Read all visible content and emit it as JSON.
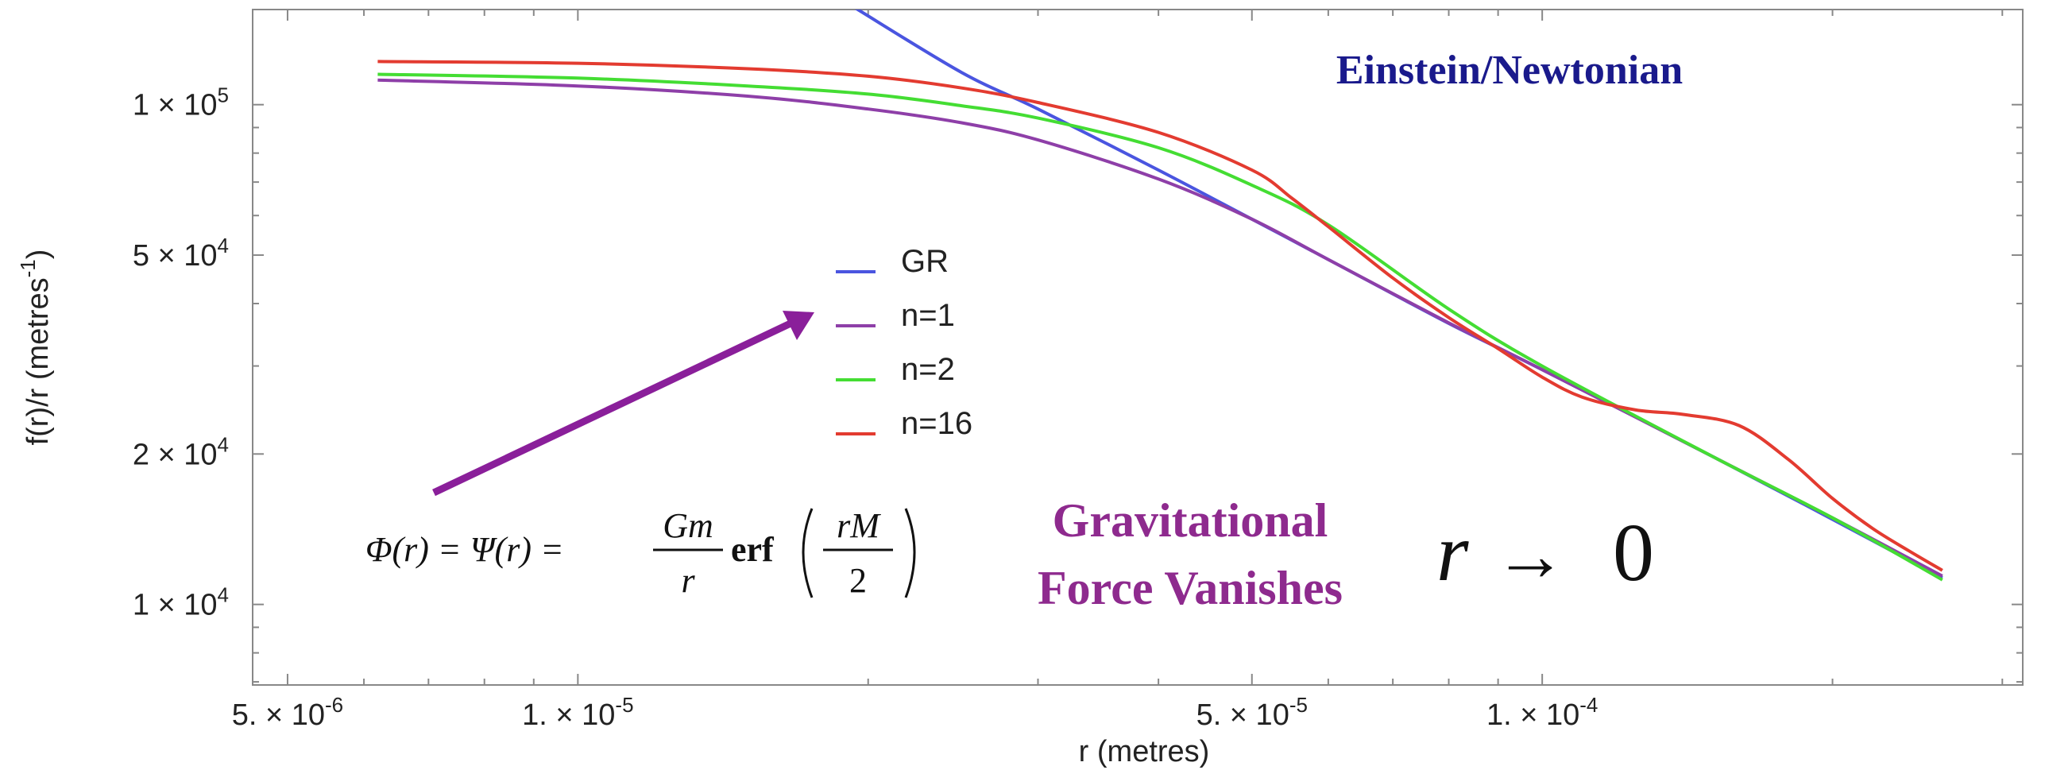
{
  "chart_data": {
    "type": "line",
    "xlabel": "r (metres)",
    "ylabel": "f(r)/r (metres",
    "ylabel_sup": "-1",
    "ylabel_close": ")",
    "x_scale": "log",
    "y_scale": "log",
    "xlim": [
      4.6e-06,
      0.000315
    ],
    "ylim": [
      6900.0,
      155000.0
    ],
    "x_ticks": [
      {
        "value": 5e-06,
        "mantissa": "5.",
        "exp": "-6"
      },
      {
        "value": 1e-05,
        "mantissa": "1.",
        "exp": "-5"
      },
      {
        "value": 5e-05,
        "mantissa": "5.",
        "exp": "-5"
      },
      {
        "value": 0.0001,
        "mantissa": "1.",
        "exp": "-4"
      }
    ],
    "y_ticks": [
      {
        "value": 10000.0,
        "mantissa": "1",
        "exp": "4"
      },
      {
        "value": 20000.0,
        "mantissa": "2",
        "exp": "4"
      },
      {
        "value": 50000.0,
        "mantissa": "5",
        "exp": "4"
      },
      {
        "value": 100000.0,
        "mantissa": "1",
        "exp": "5"
      }
    ],
    "grid": false,
    "legend_position": "center",
    "series": [
      {
        "name": "GR",
        "color": "#4a55e0",
        "x": [
          1.94e-05,
          2.5e-05,
          3e-05,
          4e-05,
          5e-05,
          6e-05,
          8e-05,
          0.0001,
          0.00015,
          0.0002,
          0.00026
        ],
        "y": [
          156000.0,
          116000.0,
          98000.0,
          74000.0,
          59000.0,
          49000.0,
          36500.0,
          29500.0,
          19800.0,
          14800.0,
          11300.0
        ]
      },
      {
        "name": "n=1",
        "color": "#8e3fa8",
        "x": [
          6.2e-06,
          1e-05,
          1.5e-05,
          2e-05,
          2.5e-05,
          3e-05,
          4e-05,
          5e-05,
          6e-05,
          8e-05,
          0.0001,
          0.00015,
          0.0002,
          0.00026
        ],
        "y": [
          112000.0,
          109000.0,
          104000.0,
          98000.0,
          92000.0,
          85000.0,
          71000.0,
          59000.0,
          49000.0,
          36600.0,
          29500.0,
          19800.0,
          14900.0,
          11400.0
        ]
      },
      {
        "name": "n=2",
        "color": "#44dd33",
        "x": [
          6.2e-06,
          1e-05,
          1.5e-05,
          2e-05,
          2.5e-05,
          3e-05,
          4e-05,
          5e-05,
          6e-05,
          8e-05,
          0.0001,
          0.00015,
          0.0002,
          0.00026
        ],
        "y": [
          115000.0,
          113000.0,
          109000.0,
          105000.0,
          99500.0,
          94000.0,
          82000.0,
          69000.0,
          57500.0,
          39000.0,
          30000.0,
          19800.0,
          14900.0,
          11200.0
        ]
      },
      {
        "name": "n=16",
        "color": "#e33b30",
        "x": [
          6.2e-06,
          1e-05,
          1.5e-05,
          2e-05,
          2.5e-05,
          3e-05,
          4e-05,
          5e-05,
          5.5e-05,
          6e-05,
          7e-05,
          8e-05,
          9e-05,
          0.0001,
          0.00011,
          0.000125,
          0.00014,
          0.00016,
          0.00018,
          0.0002,
          0.00022,
          0.00024,
          0.00026
        ],
        "y": [
          122000.0,
          121000.0,
          118000.0,
          114000.0,
          108000.0,
          101000.0,
          88000.0,
          74000.0,
          65000.0,
          57000.0,
          45000.0,
          37500.0,
          32500.0,
          28500.0,
          26000.0,
          24500.0,
          24000.0,
          22800.0,
          19500.0,
          16300.0,
          14200.0,
          12800.0,
          11700.0
        ]
      }
    ]
  },
  "annotations": {
    "einstein_newtonian": "Einstein/Newtonian",
    "force_line1": "Gravitational",
    "force_line2": "Force Vanishes",
    "limit_r": "r",
    "limit_arrow": "→",
    "limit_zero": "0",
    "formula": {
      "lhs": "Φ(r) = Ψ(r) =",
      "num": "Gm",
      "den": "r",
      "func": "erf",
      "arg_num": "rM",
      "arg_den": "2"
    },
    "arrow_color": "#8a1f9a"
  }
}
